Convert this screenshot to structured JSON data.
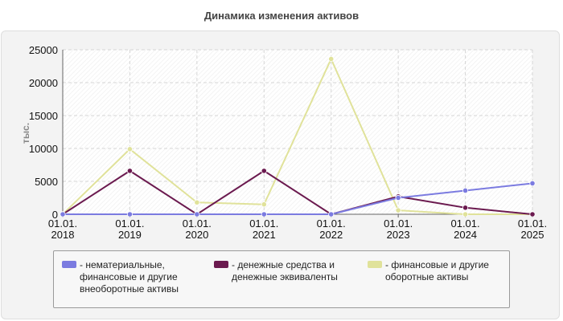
{
  "chart_data": {
    "type": "line",
    "title": "Динамика изменения активов",
    "ylabel": "тыс.",
    "categories": [
      [
        "01.01.",
        "2018"
      ],
      [
        "01.01.",
        "2019"
      ],
      [
        "01.01.",
        "2020"
      ],
      [
        "01.01.",
        "2021"
      ],
      [
        "01.01.",
        "2022"
      ],
      [
        "01.01.",
        "2023"
      ],
      [
        "01.01.",
        "2024"
      ],
      [
        "01.01.",
        "2025"
      ]
    ],
    "ylim": [
      0,
      25000
    ],
    "yticks": [
      0,
      5000,
      10000,
      15000,
      20000,
      25000
    ],
    "grid": true,
    "legend_position": "bottom",
    "series": [
      {
        "name": "- нематериальные, финансовые и другие внеоборотные активы",
        "name_lines": [
          "- нематериальные,",
          "финансовые и другие",
          "внеоборотные активы"
        ],
        "color": "#7b7be0",
        "values": [
          0,
          0,
          0,
          0,
          0,
          2500,
          3600,
          4700
        ]
      },
      {
        "name": "- денежные средства и денежные эквиваленты",
        "name_lines": [
          "- денежные средства и",
          "денежные эквиваленты"
        ],
        "color": "#6b1a4f",
        "values": [
          0,
          6600,
          0,
          6600,
          0,
          2700,
          1000,
          0
        ]
      },
      {
        "name": "- финансовые и другие оборотные активы",
        "name_lines": [
          "- финансовые и другие",
          "оборотные активы"
        ],
        "color": "#e0e29a",
        "values": [
          0,
          9900,
          1800,
          1500,
          23600,
          600,
          0,
          0
        ]
      }
    ]
  }
}
